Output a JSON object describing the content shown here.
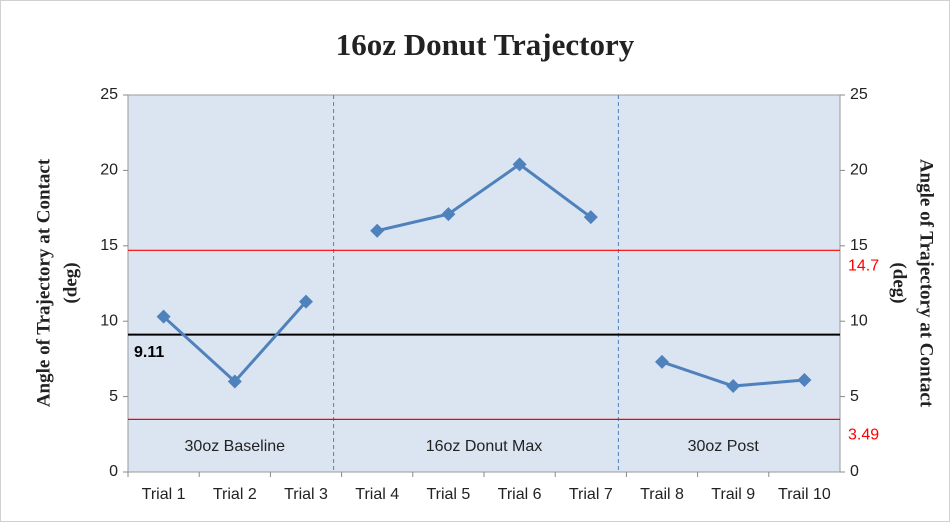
{
  "chart_data": {
    "type": "line",
    "title": "16oz Donut Trajectory",
    "ylabel": [
      "Angle of Trajectory at Contact",
      "(deg)"
    ],
    "y2label": [
      "Angle of Trajectory at Contact",
      "(deg)"
    ],
    "categories": [
      "Trial 1",
      "Trial 2",
      "Trial 3",
      "Trial 4",
      "Trial 5",
      "Trial 6",
      "Trial 7",
      "Trail 8",
      "Trail 9",
      "Trail 10"
    ],
    "series": [
      {
        "name": "30oz Baseline",
        "color": "#4f81bd",
        "values": [
          10.3,
          6.0,
          11.3,
          null,
          null,
          null,
          null,
          null,
          null,
          null
        ]
      },
      {
        "name": "16oz Donut Max",
        "color": "#4f81bd",
        "values": [
          null,
          null,
          null,
          16.0,
          17.1,
          20.4,
          16.9,
          null,
          null,
          null
        ]
      },
      {
        "name": "30oz Post",
        "color": "#4f81bd",
        "values": [
          null,
          null,
          null,
          null,
          null,
          null,
          null,
          7.3,
          5.7,
          6.1
        ]
      }
    ],
    "reference_lines": [
      {
        "value": 9.11,
        "color": "#000000",
        "label_color": "#000000"
      },
      {
        "value": 14.7,
        "color": "#ff0000",
        "label_color": "#ff0000"
      },
      {
        "value": 3.49,
        "color": "#ff0000",
        "label_color": "#ff0000"
      }
    ],
    "ylim": [
      0,
      25
    ],
    "yticks": [
      0,
      5,
      10,
      15,
      20,
      25
    ],
    "y2lim": [
      0,
      25
    ],
    "y2ticks": [
      0,
      5,
      10,
      15,
      20,
      25
    ],
    "plot_background": "#dbe5f1"
  }
}
